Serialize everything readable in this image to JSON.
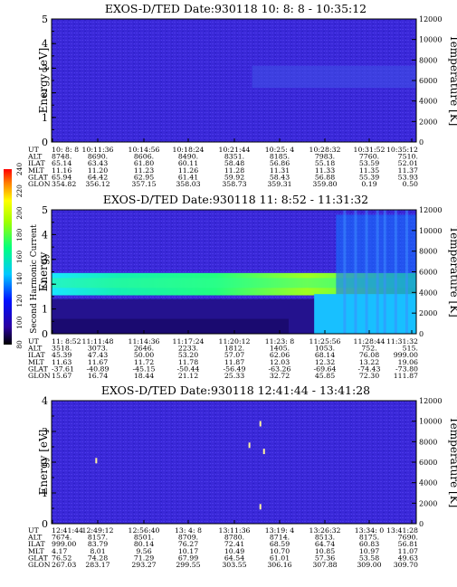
{
  "chart_data": [
    {
      "type": "heatmap",
      "title": "EXOS-D/TED   Date:930118  10: 8: 8 - 10:35:12",
      "ylabel": "Energy [eV]",
      "ylabel_right": "Temperature [K]",
      "ylim": [
        0,
        5
      ],
      "ylim_right": [
        0,
        12000
      ],
      "yticks": [
        "0",
        "1",
        "2",
        "3",
        "4",
        "5"
      ],
      "yticks_right": [
        "0",
        "2000",
        "4000",
        "6000",
        "8000",
        "10000",
        "12000"
      ],
      "row_labels": [
        "UT",
        "ALT",
        "ILAT",
        "MLT",
        "GLAT",
        "GLON"
      ],
      "columns": [
        [
          "10: 8: 8",
          "8748.",
          "65.14",
          "11.16",
          "65.94",
          "354.82"
        ],
        [
          "10:11:36",
          "8690.",
          "63.43",
          "11.20",
          "64.42",
          "356.12"
        ],
        [
          "10:14:56",
          "8606.",
          "61.80",
          "11.23",
          "62.95",
          "357.15"
        ],
        [
          "10:18:24",
          "8490.",
          "60.11",
          "11.26",
          "61.41",
          "358.03"
        ],
        [
          "10:21:44",
          "8351.",
          "58.48",
          "11.28",
          "59.92",
          "358.73"
        ],
        [
          "10:25: 4",
          "8185.",
          "56.86",
          "11.31",
          "58.43",
          "359.31"
        ],
        [
          "10:28:32",
          "7983.",
          "55.18",
          "11.33",
          "56.88",
          "359.80"
        ],
        [
          "10:31:52",
          "7760.",
          "53.59",
          "11.35",
          "55.39",
          "0.19"
        ],
        [
          "10:35:12",
          "7510.",
          "52.01",
          "11.37",
          "53.93",
          "0.50"
        ]
      ]
    },
    {
      "type": "heatmap",
      "title": "EXOS-D/TED   Date:930118  11: 8:52 - 11:31:32",
      "ylabel": "Energy",
      "ylabel_extra": "Second Harmonic Current",
      "ylabel_right": "Temperature [K]",
      "ylim": [
        0,
        5
      ],
      "ylim_right": [
        0,
        12000
      ],
      "yticks": [
        "0",
        "1",
        "2",
        "3",
        "4",
        "5"
      ],
      "yticks_right": [
        "0",
        "2000",
        "4000",
        "6000",
        "8000",
        "10000",
        "12000"
      ],
      "colorbar": {
        "range": [
          80,
          240
        ],
        "ticks": [
          "80",
          "100",
          "120",
          "140",
          "160",
          "180",
          "200",
          "220",
          "240"
        ]
      },
      "row_labels": [
        "UT",
        "ALT",
        "ILAT",
        "MLT",
        "GLAT",
        "GLON"
      ],
      "columns": [
        [
          "11: 8:52",
          "3518.",
          "45.39",
          "11.63",
          "-37.61",
          "15.67"
        ],
        [
          "11:11:48",
          "3073.",
          "47.43",
          "11.67",
          "-40.89",
          "16.74"
        ],
        [
          "11:14:36",
          "2646.",
          "50.00",
          "11.72",
          "-45.15",
          "18.44"
        ],
        [
          "11:17:24",
          "2233.",
          "53.20",
          "11.78",
          "-50.44",
          "21.12"
        ],
        [
          "11:20:12",
          "1812.",
          "57.07",
          "11.87",
          "-56.49",
          "25.33"
        ],
        [
          "11:23: 8",
          "1405.",
          "62.06",
          "12.03",
          "-63.26",
          "32.72"
        ],
        [
          "11:25:56",
          "1053.",
          "68.14",
          "12.32",
          "-69.64",
          "45.85"
        ],
        [
          "11:28:44",
          "752.",
          "76.08",
          "13.22",
          "-74.43",
          "72.30"
        ],
        [
          "11:31:32",
          "515.",
          "999.00",
          "19.06",
          "-73.80",
          "111.87"
        ]
      ]
    },
    {
      "type": "heatmap",
      "title": "EXOS-D/TED   Date:930118  12:41:44 - 13:41:28",
      "ylabel": "Energy [eV]",
      "ylabel_right": "Temperature [K]",
      "ylim": [
        0,
        4
      ],
      "ylim_right": [
        0,
        12000
      ],
      "yticks": [
        "0",
        "1",
        "2",
        "3",
        "4"
      ],
      "yticks_right": [
        "0",
        "2000",
        "4000",
        "6000",
        "8000",
        "10000",
        "12000"
      ],
      "row_labels": [
        "UT",
        "ALT",
        "ILAT",
        "MLT",
        "GLAT",
        "GLON"
      ],
      "columns": [
        [
          "12:41:44",
          "7674.",
          "999.00",
          "4.17",
          "76.52",
          "267.03"
        ],
        [
          "12:49:12",
          "8157.",
          "83.79",
          "8.01",
          "74.28",
          "283.17"
        ],
        [
          "12:56:40",
          "8501.",
          "80.14",
          "9.56",
          "71.29",
          "293.27"
        ],
        [
          "13: 4: 8",
          "8709.",
          "76.27",
          "10.17",
          "67.99",
          "299.55"
        ],
        [
          "13:11:36",
          "8780.",
          "72.41",
          "10.49",
          "64.54",
          "303.55"
        ],
        [
          "13:19: 4",
          "8714.",
          "68.59",
          "10.70",
          "61.01",
          "306.16"
        ],
        [
          "13:26:32",
          "8513.",
          "64.74",
          "10.85",
          "57.36",
          "307.88"
        ],
        [
          "13:34: 0",
          "8175.",
          "60.83",
          "10.97",
          "53.58",
          "309.00"
        ],
        [
          "13:41:28",
          "7690.",
          "56.81",
          "11.07",
          "49.63",
          "309.70"
        ]
      ]
    }
  ]
}
